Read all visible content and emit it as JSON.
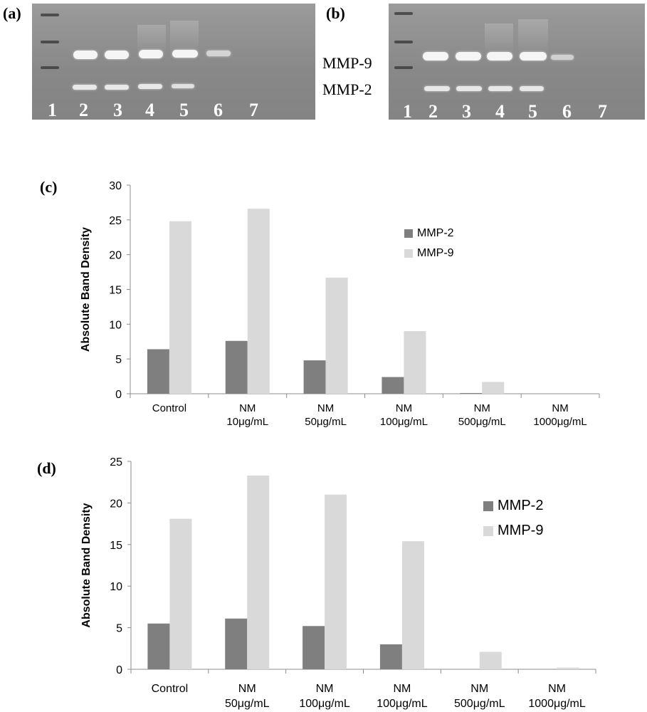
{
  "figure": {
    "panel_a": "(a)",
    "panel_b": "(b)",
    "panel_c": "(c)",
    "panel_d": "(d)"
  },
  "gel_labels": {
    "mmp9": "MMP-9",
    "mmp2": "MMP-2",
    "lanes": [
      "1",
      "2",
      "3",
      "4",
      "5",
      "6",
      "7"
    ]
  },
  "colors": {
    "mmp2": "#7f7f7f",
    "mmp9": "#d9d9d9",
    "gel": "#8f8f8f",
    "axis": "#8c8c8c"
  },
  "chart_data": [
    {
      "type": "bar",
      "panel": "(c)",
      "categories": [
        {
          "line1": "Control",
          "line2": ""
        },
        {
          "line1": "NM",
          "line2": "10μg/mL"
        },
        {
          "line1": "NM",
          "line2": "50μg/mL"
        },
        {
          "line1": "NM",
          "line2": "100μg/mL"
        },
        {
          "line1": "NM",
          "line2": "500μg/mL"
        },
        {
          "line1": "NM",
          "line2": "1000μg/mL"
        }
      ],
      "series": [
        {
          "name": "MMP-2",
          "values": [
            6.4,
            7.6,
            4.8,
            2.4,
            0.1,
            0.0
          ]
        },
        {
          "name": "MMP-9",
          "values": [
            24.8,
            26.6,
            16.7,
            9.0,
            1.7,
            0.0
          ]
        }
      ],
      "ylabel": "Absolute Band Density",
      "ylim": [
        0,
        30
      ],
      "yticks": [
        0,
        5,
        10,
        15,
        20,
        25,
        30
      ],
      "legend": "right"
    },
    {
      "type": "bar",
      "panel": "(d)",
      "categories": [
        {
          "line1": "Control",
          "line2": ""
        },
        {
          "line1": "NM",
          "line2": "50μg/mL"
        },
        {
          "line1": "NM",
          "line2": "100μg/mL"
        },
        {
          "line1": "NM",
          "line2": "100μg/mL"
        },
        {
          "line1": "NM",
          "line2": "500μg/mL"
        },
        {
          "line1": "NM",
          "line2": "1000μg/mL"
        }
      ],
      "series": [
        {
          "name": "MMP-2",
          "values": [
            5.5,
            6.1,
            5.2,
            3.0,
            0.0,
            0.0
          ]
        },
        {
          "name": "MMP-9",
          "values": [
            18.1,
            23.3,
            21.0,
            15.4,
            2.1,
            0.2
          ]
        }
      ],
      "ylabel": "Absolute Band Density",
      "ylim": [
        0,
        25
      ],
      "yticks": [
        0,
        5,
        10,
        15,
        20,
        25
      ],
      "legend": "right"
    }
  ]
}
